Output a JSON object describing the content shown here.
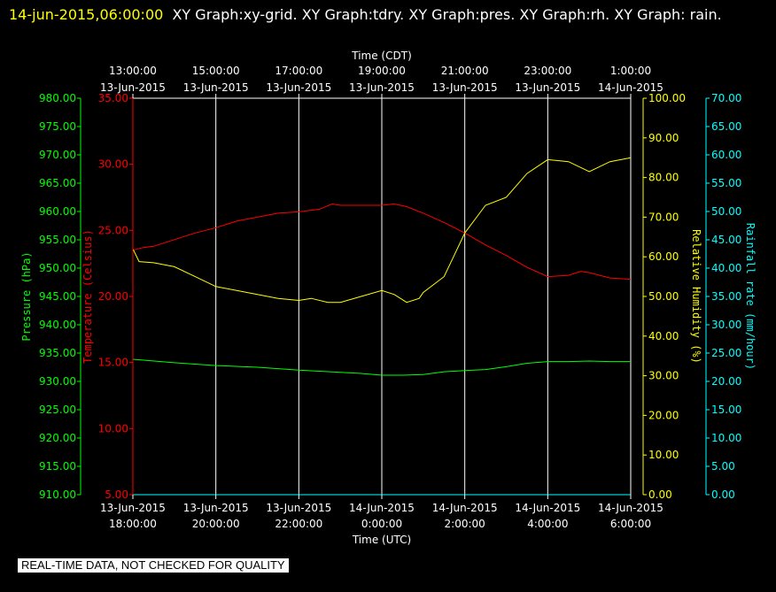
{
  "header": {
    "timestamp": "14-jun-2015,06:00:00",
    "graphs": "XY Graph:xy-grid.  XY Graph:tdry.  XY Graph:pres.  XY Graph:rh.  XY Graph: rain."
  },
  "quality_notice": "REAL-TIME DATA, NOT CHECKED FOR QUALITY",
  "colors": {
    "pressure": "#00ff00",
    "temperature": "#ff0000",
    "humidity": "#ffff00",
    "rain": "#00ffff",
    "grid": "#ffffff"
  },
  "chart_data": {
    "type": "line",
    "grid": true,
    "x_top": {
      "label": "Time (CDT)",
      "ticks": [
        {
          "t": 0,
          "time": "13:00:00",
          "date": "13-Jun-2015"
        },
        {
          "t": 2,
          "time": "15:00:00",
          "date": "13-Jun-2015"
        },
        {
          "t": 4,
          "time": "17:00:00",
          "date": "13-Jun-2015"
        },
        {
          "t": 6,
          "time": "19:00:00",
          "date": "13-Jun-2015"
        },
        {
          "t": 8,
          "time": "21:00:00",
          "date": "13-Jun-2015"
        },
        {
          "t": 10,
          "time": "23:00:00",
          "date": "13-Jun-2015"
        },
        {
          "t": 12,
          "time": "1:00:00",
          "date": "14-Jun-2015"
        }
      ]
    },
    "x_bottom": {
      "label": "Time (UTC)",
      "ticks": [
        {
          "t": 0,
          "date": "13-Jun-2015",
          "time": "18:00:00"
        },
        {
          "t": 2,
          "date": "13-Jun-2015",
          "time": "20:00:00"
        },
        {
          "t": 4,
          "date": "13-Jun-2015",
          "time": "22:00:00"
        },
        {
          "t": 6,
          "date": "14-Jun-2015",
          "time": "0:00:00"
        },
        {
          "t": 8,
          "date": "14-Jun-2015",
          "time": "2:00:00"
        },
        {
          "t": 10,
          "date": "14-Jun-2015",
          "time": "4:00:00"
        },
        {
          "t": 12,
          "date": "14-Jun-2015",
          "time": "6:00:00"
        }
      ]
    },
    "axes": {
      "pressure": {
        "label": "Pressure (hPa)",
        "ylim": [
          910,
          980
        ],
        "ticks": [
          "910.00",
          "915.00",
          "920.00",
          "925.00",
          "930.00",
          "935.00",
          "940.00",
          "945.00",
          "950.00",
          "955.00",
          "960.00",
          "965.00",
          "970.00",
          "975.00",
          "980.00"
        ]
      },
      "temperature": {
        "label": "Temperature (Celsius)",
        "ylim": [
          5,
          35
        ],
        "ticks": [
          "5.00",
          "10.00",
          "15.00",
          "20.00",
          "25.00",
          "30.00",
          "35.00"
        ]
      },
      "humidity": {
        "label": "Relative Humidity (%)",
        "ylim": [
          0,
          100
        ],
        "ticks": [
          "0.00",
          "10.00",
          "20.00",
          "30.00",
          "40.00",
          "50.00",
          "60.00",
          "70.00",
          "80.00",
          "90.00",
          "100.00"
        ]
      },
      "rain": {
        "label": "Rainfall rate (mm/hour)",
        "ylim": [
          0,
          70
        ],
        "ticks": [
          "0.00",
          "5.00",
          "10.00",
          "15.00",
          "20.00",
          "25.00",
          "30.00",
          "35.00",
          "40.00",
          "45.00",
          "50.00",
          "55.00",
          "60.00",
          "65.00",
          "70.00"
        ]
      }
    },
    "series": [
      {
        "axis": "pressure",
        "points": [
          [
            0,
            933.9
          ],
          [
            1,
            933.3
          ],
          [
            2,
            932.8
          ],
          [
            3,
            932.5
          ],
          [
            4,
            932.0
          ],
          [
            5,
            931.6
          ],
          [
            5.5,
            931.4
          ],
          [
            6,
            931.1
          ],
          [
            6.5,
            931.1
          ],
          [
            7,
            931.2
          ],
          [
            7.5,
            931.7
          ],
          [
            8,
            931.9
          ],
          [
            8.5,
            932.1
          ],
          [
            9,
            932.6
          ],
          [
            9.5,
            933.2
          ],
          [
            10,
            933.5
          ],
          [
            10.5,
            933.5
          ],
          [
            11,
            933.6
          ],
          [
            11.5,
            933.5
          ],
          [
            12,
            933.5
          ]
        ]
      },
      {
        "axis": "temperature",
        "points": [
          [
            0,
            23.5
          ],
          [
            0.25,
            23.7
          ],
          [
            0.5,
            23.8
          ],
          [
            1,
            24.3
          ],
          [
            1.5,
            24.8
          ],
          [
            2,
            25.2
          ],
          [
            2.5,
            25.7
          ],
          [
            3,
            26.0
          ],
          [
            3.5,
            26.3
          ],
          [
            4,
            26.4
          ],
          [
            4.5,
            26.6
          ],
          [
            4.8,
            27.0
          ],
          [
            5,
            26.9
          ],
          [
            5.5,
            26.9
          ],
          [
            6,
            26.9
          ],
          [
            6.3,
            27.0
          ],
          [
            6.6,
            26.8
          ],
          [
            7,
            26.3
          ],
          [
            7.5,
            25.6
          ],
          [
            8,
            24.8
          ],
          [
            8.5,
            23.9
          ],
          [
            9,
            23.1
          ],
          [
            9.5,
            22.2
          ],
          [
            10,
            21.5
          ],
          [
            10.5,
            21.6
          ],
          [
            10.8,
            21.9
          ],
          [
            11,
            21.8
          ],
          [
            11.5,
            21.4
          ],
          [
            12,
            21.3
          ]
        ]
      },
      {
        "axis": "humidity",
        "points": [
          [
            0,
            62.0
          ],
          [
            0.15,
            58.8
          ],
          [
            0.5,
            58.5
          ],
          [
            1,
            57.5
          ],
          [
            1.5,
            55.0
          ],
          [
            2,
            52.5
          ],
          [
            2.5,
            51.5
          ],
          [
            3,
            50.5
          ],
          [
            3.5,
            49.5
          ],
          [
            4,
            49.0
          ],
          [
            4.3,
            49.5
          ],
          [
            4.7,
            48.5
          ],
          [
            5,
            48.5
          ],
          [
            5.5,
            50.0
          ],
          [
            6,
            51.5
          ],
          [
            6.3,
            50.5
          ],
          [
            6.6,
            48.5
          ],
          [
            6.9,
            49.5
          ],
          [
            7,
            51.0
          ],
          [
            7.5,
            55.0
          ],
          [
            8,
            66.0
          ],
          [
            8.5,
            73.0
          ],
          [
            9,
            75.0
          ],
          [
            9.5,
            81.0
          ],
          [
            10,
            84.5
          ],
          [
            10.5,
            84.0
          ],
          [
            11,
            81.5
          ],
          [
            11.5,
            84.0
          ],
          [
            12,
            85.0
          ]
        ]
      },
      {
        "axis": "rain",
        "points": [
          [
            0,
            0
          ],
          [
            12,
            0
          ]
        ]
      }
    ]
  }
}
